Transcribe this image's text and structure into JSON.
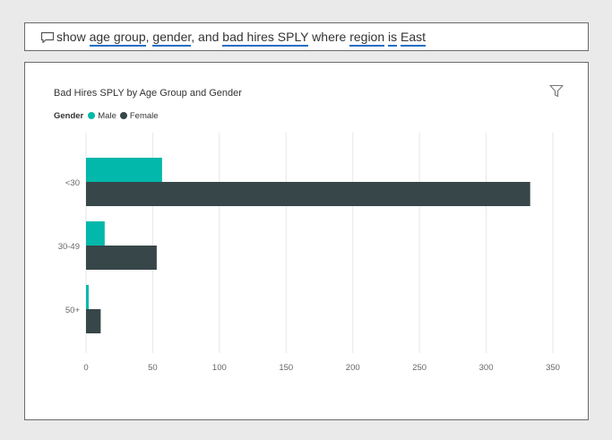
{
  "qa": {
    "tokens": [
      {
        "text": "show",
        "term": false
      },
      {
        "text": " ",
        "term": false
      },
      {
        "text": "age group",
        "term": true
      },
      {
        "text": ", ",
        "term": false
      },
      {
        "text": "gender",
        "term": true
      },
      {
        "text": ", and ",
        "term": false
      },
      {
        "text": "bad hires SPLY",
        "term": true
      },
      {
        "text": " where ",
        "term": false
      },
      {
        "text": "region",
        "term": true
      },
      {
        "text": " ",
        "term": false
      },
      {
        "text": "is",
        "term": true
      },
      {
        "text": " ",
        "term": false
      },
      {
        "text": "East",
        "term": true
      }
    ],
    "icon": "chat-bubble-icon"
  },
  "visual": {
    "filter_icon": "filter-icon"
  },
  "chart_data": {
    "type": "bar",
    "orientation": "horizontal",
    "title": "Bad Hires SPLY by Age Group and Gender",
    "legend_title": "Gender",
    "legend_position": "top-left",
    "categories": [
      "<30",
      "30-49",
      "50+"
    ],
    "series": [
      {
        "name": "Male",
        "color": "#01b8aa",
        "values": [
          57,
          14,
          2
        ]
      },
      {
        "name": "Female",
        "color": "#374649",
        "values": [
          333,
          53,
          11
        ]
      }
    ],
    "x_ticks": [
      0,
      50,
      100,
      150,
      200,
      250,
      300,
      350
    ],
    "xlim": [
      0,
      350
    ],
    "gridlines": true
  }
}
